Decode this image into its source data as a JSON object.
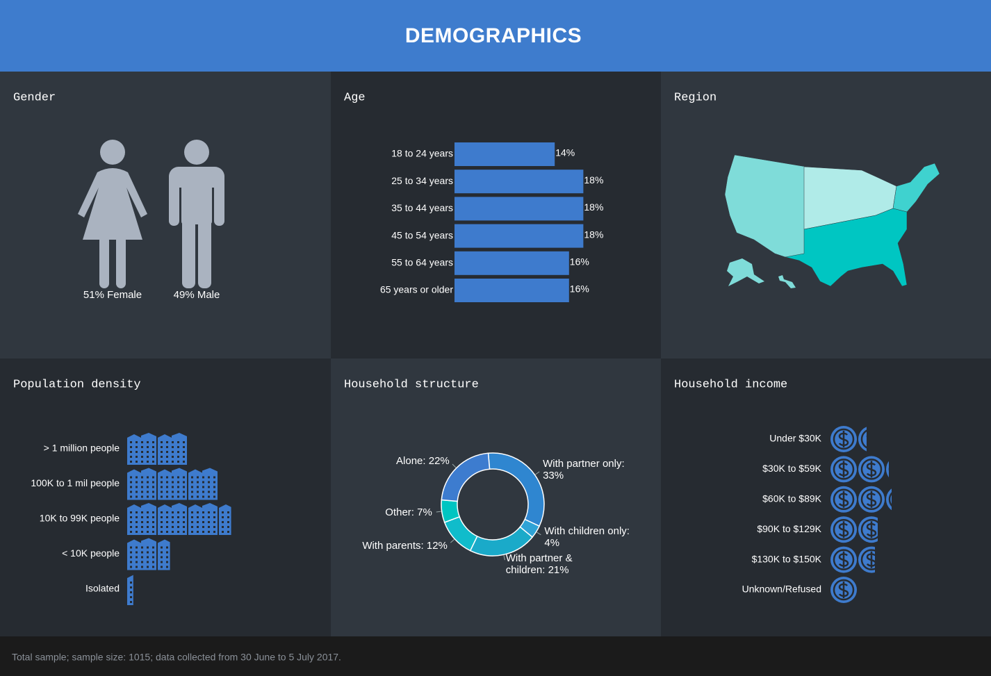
{
  "title": "DEMOGRAPHICS",
  "footnote": "Total sample; sample size: 1015; data collected from 30 June to 5 July 2017.",
  "chart_data": [
    {
      "type": "pictogram",
      "title": "Gender",
      "icons": [
        "female",
        "male"
      ],
      "values": [
        51,
        49
      ],
      "value_labels": [
        "51% Female",
        "49% Male"
      ],
      "colors": [
        "#aab3c0",
        "#00c5c1"
      ]
    },
    {
      "type": "bar",
      "orientation": "horizontal",
      "title": "Age",
      "categories": [
        "18 to 24 years",
        "25 to 34 years",
        "35 to 44 years",
        "45 to 54 years",
        "55 to 64 years",
        "65 years or older"
      ],
      "values": [
        14,
        18,
        18,
        18,
        16,
        16
      ],
      "value_labels": [
        "14%",
        "18%",
        "18%",
        "18%",
        "16%",
        "16%"
      ],
      "color": "#3e7bcd"
    },
    {
      "type": "map",
      "title": "Region"
    },
    {
      "type": "pictogram",
      "title": "Population density",
      "icon": "building",
      "categories": [
        "> 1 million people",
        "100K to 1 mil people",
        "10K to 99K people",
        "< 10K people",
        "Isolated"
      ],
      "values": [
        20,
        30,
        34,
        14,
        2
      ],
      "color": "#3e7bcd"
    },
    {
      "type": "donut",
      "title": "Household structure",
      "values": [
        33,
        4,
        21,
        12,
        7,
        22
      ],
      "value_labels": [
        "With partner only: 33%",
        "With children only: 4%",
        "With partner & children: 21%",
        "With parents: 12%",
        "Other: 7%",
        "Alone: 22%"
      ],
      "colors": [
        "#2f86d0",
        "#2fa3d6",
        "#1aaac9",
        "#10bccb",
        "#00c5c1",
        "#3d7ccf"
      ]
    },
    {
      "type": "pictogram",
      "title": "Household income",
      "icon": "coin",
      "categories": [
        "Under $30K",
        "$30K to $59K",
        "$60K to $89K",
        "$90K to $129K",
        "$130K to $150K",
        "Unknown/Refused"
      ],
      "values": [
        13,
        21,
        22,
        17,
        16,
        10
      ],
      "color": "#3e7bcd"
    }
  ]
}
